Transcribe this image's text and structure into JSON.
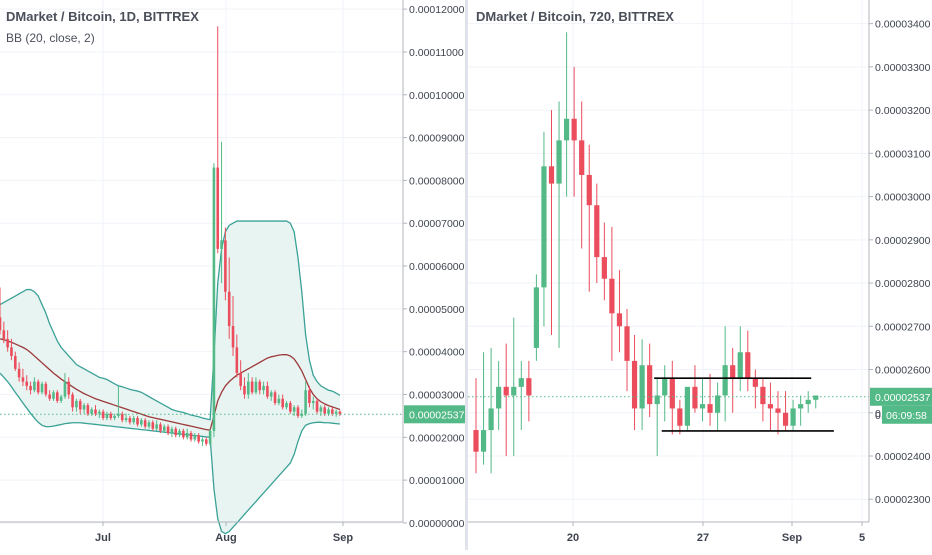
{
  "chart_data": [
    {
      "type": "candlestick",
      "title": "DMarket / Bitcoin, 1D, BITTREX",
      "indicator": "BB (20, close, 2)",
      "ylim": [
        -2.5e-07,
        0.0001205
      ],
      "y_ticks": [
        "0.00000000",
        "0.00001000",
        "0.00002000",
        "0.00003000",
        "0.00004000",
        "0.00005000",
        "0.00006000",
        "0.00007000",
        "0.00008000",
        "0.00009000",
        "0.00010000",
        "0.00011000",
        "0.00012000"
      ],
      "x_ticks": [
        "Jul",
        "Aug",
        "Sep"
      ],
      "current_price": "0.00002537",
      "colors": {
        "up": "#53b987",
        "down": "#eb4d5c",
        "band_fill": "#e8f4f2",
        "band_line": "#3aa197",
        "basis": "#9c3a3a",
        "price_line": "#53b987"
      },
      "candles": [
        [
          4.8e-05,
          5.5e-05,
          4.4e-05,
          4.5e-05
        ],
        [
          4.5e-05,
          4.7e-05,
          4.2e-05,
          4.3e-05
        ],
        [
          4.3e-05,
          4.5e-05,
          4e-05,
          4.1e-05
        ],
        [
          4.1e-05,
          4.3e-05,
          3.8e-05,
          3.9e-05
        ],
        [
          3.9e-05,
          4e-05,
          3.55e-05,
          3.6e-05
        ],
        [
          3.6e-05,
          3.75e-05,
          3.3e-05,
          3.4e-05
        ],
        [
          3.4e-05,
          3.6e-05,
          3.2e-05,
          3.3e-05
        ],
        [
          3.3e-05,
          3.45e-05,
          3.1e-05,
          3.2e-05
        ],
        [
          3.2e-05,
          3.3e-05,
          3e-05,
          3.1e-05
        ],
        [
          3.1e-05,
          3.4e-05,
          3.05e-05,
          3.3e-05
        ],
        [
          3.3e-05,
          3.35e-05,
          3e-05,
          3.05e-05
        ],
        [
          3.05e-05,
          3.3e-05,
          3e-05,
          3.25e-05
        ],
        [
          3.25e-05,
          3.3e-05,
          2.95e-05,
          3e-05
        ],
        [
          3e-05,
          3.1e-05,
          2.85e-05,
          2.9e-05
        ],
        [
          2.9e-05,
          3.1e-05,
          2.85e-05,
          3.05e-05
        ],
        [
          3.05e-05,
          3.1e-05,
          2.8e-05,
          2.85e-05
        ],
        [
          2.85e-05,
          3e-05,
          2.8e-05,
          2.95e-05
        ],
        [
          2.95e-05,
          3.5e-05,
          2.9e-05,
          3.3e-05
        ],
        [
          3.3e-05,
          3.4e-05,
          2.9e-05,
          3e-05
        ],
        [
          3e-05,
          3.05e-05,
          2.6e-05,
          2.7e-05
        ],
        [
          2.7e-05,
          2.9e-05,
          2.6e-05,
          2.85e-05
        ],
        [
          2.85e-05,
          2.9e-05,
          2.55e-05,
          2.65e-05
        ],
        [
          2.65e-05,
          2.8e-05,
          2.55e-05,
          2.75e-05
        ],
        [
          2.75e-05,
          2.8e-05,
          2.5e-05,
          2.55e-05
        ],
        [
          2.55e-05,
          2.7e-05,
          2.5e-05,
          2.65e-05
        ],
        [
          2.65e-05,
          2.75e-05,
          2.5e-05,
          2.55e-05
        ],
        [
          2.55e-05,
          2.65e-05,
          2.45e-05,
          2.6e-05
        ],
        [
          2.6e-05,
          2.65e-05,
          2.4e-05,
          2.45e-05
        ],
        [
          2.45e-05,
          2.6e-05,
          2.4e-05,
          2.55e-05
        ],
        [
          2.55e-05,
          2.6e-05,
          2.4e-05,
          2.45e-05
        ],
        [
          2.45e-05,
          2.55e-05,
          2.4e-05,
          2.5e-05
        ],
        [
          2.5e-05,
          3.2e-05,
          2.45e-05,
          2.55e-05
        ],
        [
          2.55e-05,
          2.6e-05,
          2.35e-05,
          2.4e-05
        ],
        [
          2.4e-05,
          2.55e-05,
          2.35e-05,
          2.45e-05
        ],
        [
          2.45e-05,
          2.5e-05,
          2.3e-05,
          2.35e-05
        ],
        [
          2.35e-05,
          2.5e-05,
          2.3e-05,
          2.45e-05
        ],
        [
          2.45e-05,
          2.5e-05,
          2.25e-05,
          2.3e-05
        ],
        [
          2.3e-05,
          2.45e-05,
          2.25e-05,
          2.4e-05
        ],
        [
          2.4e-05,
          2.45e-05,
          2.2e-05,
          2.25e-05
        ],
        [
          2.25e-05,
          2.4e-05,
          2.2e-05,
          2.35e-05
        ],
        [
          2.35e-05,
          2.4e-05,
          2.15e-05,
          2.2e-05
        ],
        [
          2.2e-05,
          2.4e-05,
          2.15e-05,
          2.3e-05
        ],
        [
          2.3e-05,
          2.35e-05,
          2.1e-05,
          2.15e-05
        ],
        [
          2.15e-05,
          2.3e-05,
          2.1e-05,
          2.25e-05
        ],
        [
          2.25e-05,
          2.3e-05,
          2.05e-05,
          2.1e-05
        ],
        [
          2.1e-05,
          2.25e-05,
          2e-05,
          2.2e-05
        ],
        [
          2.2e-05,
          2.25e-05,
          2e-05,
          2.05e-05
        ],
        [
          2.05e-05,
          2.2e-05,
          2e-05,
          2.15e-05
        ],
        [
          2.15e-05,
          2.2e-05,
          1.95e-05,
          2e-05
        ],
        [
          2e-05,
          2.2e-05,
          1.95e-05,
          2.1e-05
        ],
        [
          2.1e-05,
          2.15e-05,
          1.9e-05,
          1.95e-05
        ],
        [
          1.95e-05,
          2.1e-05,
          1.9e-05,
          2.05e-05
        ],
        [
          2.05e-05,
          2.1e-05,
          1.85e-05,
          1.9e-05
        ],
        [
          1.9e-05,
          2e-05,
          1.8e-05,
          1.95e-05
        ],
        [
          1.95e-05,
          2e-05,
          1.8e-05,
          1.85e-05
        ],
        [
          1.85e-05,
          2.2e-05,
          1.8e-05,
          2.15e-05
        ],
        [
          2.15e-05,
          8.4e-05,
          2e-05,
          8.3e-05
        ],
        [
          8.3e-05,
          0.000116,
          6.3e-05,
          6.4e-05
        ],
        [
          6.4e-05,
          8.9e-05,
          5.6e-05,
          6.6e-05
        ],
        [
          6.6e-05,
          6.9e-05,
          5.2e-05,
          5.4e-05
        ],
        [
          5.4e-05,
          6.2e-05,
          4.3e-05,
          4.6e-05
        ],
        [
          4.6e-05,
          5.3e-05,
          3.9e-05,
          4.1e-05
        ],
        [
          4.1e-05,
          4.4e-05,
          3.4e-05,
          3.5e-05
        ],
        [
          3.5e-05,
          3.8e-05,
          3.1e-05,
          3.2e-05
        ],
        [
          3.2e-05,
          3.4e-05,
          2.9e-05,
          3e-05
        ],
        [
          3e-05,
          3.5e-05,
          2.9e-05,
          3.3e-05
        ],
        [
          3.3e-05,
          3.4e-05,
          3e-05,
          3.05e-05
        ],
        [
          3.05e-05,
          3.4e-05,
          3e-05,
          3.3e-05
        ],
        [
          3.3e-05,
          3.35e-05,
          3e-05,
          3.1e-05
        ],
        [
          3.1e-05,
          3.3e-05,
          3e-05,
          3.2e-05
        ],
        [
          3.2e-05,
          3.3e-05,
          2.9e-05,
          2.95e-05
        ],
        [
          2.95e-05,
          3.1e-05,
          2.85e-05,
          3.05e-05
        ],
        [
          3.05e-05,
          3.1e-05,
          2.75e-05,
          2.8e-05
        ],
        [
          2.8e-05,
          3e-05,
          2.75e-05,
          2.9e-05
        ],
        [
          2.9e-05,
          3e-05,
          2.65e-05,
          2.7e-05
        ],
        [
          2.7e-05,
          2.85e-05,
          2.65e-05,
          2.8e-05
        ],
        [
          2.8e-05,
          2.85e-05,
          2.55e-05,
          2.6e-05
        ],
        [
          2.6e-05,
          2.75e-05,
          2.5e-05,
          2.7e-05
        ],
        [
          2.7e-05,
          2.75e-05,
          2.45e-05,
          2.5e-05
        ],
        [
          2.5e-05,
          2.65e-05,
          2.45e-05,
          2.55e-05
        ],
        [
          2.55e-05,
          3.3e-05,
          2.5e-05,
          3.1e-05
        ],
        [
          3.1e-05,
          3.2e-05,
          2.7e-05,
          2.8e-05
        ],
        [
          2.8e-05,
          2.95e-05,
          2.65e-05,
          2.85e-05
        ],
        [
          2.85e-05,
          2.9e-05,
          2.55e-05,
          2.6e-05
        ],
        [
          2.6e-05,
          2.75e-05,
          2.5e-05,
          2.7e-05
        ],
        [
          2.7e-05,
          2.75e-05,
          2.5e-05,
          2.55e-05
        ],
        [
          2.55e-05,
          2.7e-05,
          2.5e-05,
          2.65e-05
        ],
        [
          2.65e-05,
          2.7e-05,
          2.5e-05,
          2.55e-05
        ],
        [
          2.55e-05,
          2.65e-05,
          2.48e-05,
          2.6e-05
        ],
        [
          2.6e-05,
          2.63e-05,
          2.5e-05,
          2.54e-05
        ]
      ],
      "bb_upper": [
        5.1e-05,
        5.15e-05,
        5.2e-05,
        5.25e-05,
        5.3e-05,
        5.35e-05,
        5.4e-05,
        5.45e-05,
        5.45e-05,
        5.4e-05,
        5.3e-05,
        5.1e-05,
        4.9e-05,
        4.65e-05,
        4.45e-05,
        4.25e-05,
        4.1e-05,
        4e-05,
        3.9e-05,
        3.8e-05,
        3.7e-05,
        3.65e-05,
        3.6e-05,
        3.55e-05,
        3.5e-05,
        3.45e-05,
        3.4e-05,
        3.38e-05,
        3.35e-05,
        3.3e-05,
        3.25e-05,
        3.2e-05,
        3.18e-05,
        3.15e-05,
        3.12e-05,
        3.1e-05,
        3.08e-05,
        3.05e-05,
        3e-05,
        2.95e-05,
        2.9e-05,
        2.85e-05,
        2.8e-05,
        2.75e-05,
        2.7e-05,
        2.65e-05,
        2.62e-05,
        2.6e-05,
        2.58e-05,
        2.55e-05,
        2.52e-05,
        2.5e-05,
        2.48e-05,
        2.45e-05,
        2.43e-05,
        2.41e-05,
        3.9e-05,
        5.6e-05,
        6.4e-05,
        6.8e-05,
        6.95e-05,
        7e-05,
        7.05e-05,
        7.05e-05,
        7.05e-05,
        7.05e-05,
        7.05e-05,
        7.05e-05,
        7.05e-05,
        7.05e-05,
        7.05e-05,
        7.05e-05,
        7.05e-05,
        7.05e-05,
        7.05e-05,
        7.05e-05,
        7e-05,
        6.8e-05,
        6.2e-05,
        5.4e-05,
        4.4e-05,
        3.8e-05,
        3.45e-05,
        3.3e-05,
        3.2e-05,
        3.15e-05,
        3.1e-05,
        3.08e-05,
        3.03e-05,
        2.98e-05
      ],
      "bb_basis": [
        4.3e-05,
        4.28e-05,
        4.25e-05,
        4.22e-05,
        4.18e-05,
        4.14e-05,
        4.1e-05,
        4.05e-05,
        3.98e-05,
        3.9e-05,
        3.82e-05,
        3.74e-05,
        3.66e-05,
        3.58e-05,
        3.5e-05,
        3.43e-05,
        3.36e-05,
        3.3e-05,
        3.24e-05,
        3.18e-05,
        3.12e-05,
        3.07e-05,
        3.02e-05,
        2.98e-05,
        2.94e-05,
        2.9e-05,
        2.87e-05,
        2.84e-05,
        2.81e-05,
        2.78e-05,
        2.75e-05,
        2.72e-05,
        2.69e-05,
        2.66e-05,
        2.63e-05,
        2.6e-05,
        2.57e-05,
        2.54e-05,
        2.51e-05,
        2.48e-05,
        2.46e-05,
        2.44e-05,
        2.42e-05,
        2.4e-05,
        2.38e-05,
        2.36e-05,
        2.34e-05,
        2.32e-05,
        2.3e-05,
        2.28e-05,
        2.26e-05,
        2.24e-05,
        2.22e-05,
        2.2e-05,
        2.18e-05,
        2.17e-05,
        2.5e-05,
        2.85e-05,
        3.05e-05,
        3.2e-05,
        3.3e-05,
        3.38e-05,
        3.45e-05,
        3.5e-05,
        3.55e-05,
        3.6e-05,
        3.65e-05,
        3.7e-05,
        3.75e-05,
        3.8e-05,
        3.85e-05,
        3.88e-05,
        3.9e-05,
        3.92e-05,
        3.93e-05,
        3.93e-05,
        3.9e-05,
        3.83e-05,
        3.7e-05,
        3.55e-05,
        3.35e-05,
        3.15e-05,
        3e-05,
        2.9e-05,
        2.83e-05,
        2.78e-05,
        2.74e-05,
        2.71e-05,
        2.68e-05,
        2.65e-05
      ],
      "bb_lower": [
        3.5e-05,
        3.4e-05,
        3.3e-05,
        3.18e-05,
        3.05e-05,
        2.93e-05,
        2.8e-05,
        2.68e-05,
        2.56e-05,
        2.45e-05,
        2.35e-05,
        2.28e-05,
        2.25e-05,
        2.25e-05,
        2.26e-05,
        2.28e-05,
        2.3e-05,
        2.32e-05,
        2.33e-05,
        2.34e-05,
        2.34e-05,
        2.34e-05,
        2.33e-05,
        2.32e-05,
        2.31e-05,
        2.3e-05,
        2.29e-05,
        2.28e-05,
        2.27e-05,
        2.26e-05,
        2.25e-05,
        2.24e-05,
        2.23e-05,
        2.22e-05,
        2.21e-05,
        2.2e-05,
        2.19e-05,
        2.18e-05,
        2.17e-05,
        2.16e-05,
        2.15e-05,
        2.14e-05,
        2.13e-05,
        2.12e-05,
        2.11e-05,
        2.1e-05,
        2.09e-05,
        2.08e-05,
        2.07e-05,
        2.06e-05,
        2.05e-05,
        2.04e-05,
        2.03e-05,
        2.02e-05,
        2.01e-05,
        2e-05,
        8e-06,
        1e-06,
        -2e-06,
        -2.5e-06,
        -2e-06,
        -1e-06,
        0.0,
        1e-06,
        2e-06,
        3e-06,
        4e-06,
        5e-06,
        6e-06,
        7e-06,
        8e-06,
        9e-06,
        1e-05,
        1.1e-05,
        1.2e-05,
        1.3e-05,
        1.4e-05,
        1.6e-05,
        1.9e-05,
        2.15e-05,
        2.28e-05,
        2.32e-05,
        2.34e-05,
        2.35e-05,
        2.35e-05,
        2.34e-05,
        2.34e-05,
        2.33e-05,
        2.32e-05,
        2.31e-05
      ]
    },
    {
      "type": "candlestick",
      "title": "DMarket / Bitcoin, 720, BITTREX",
      "ylim": [
        2.252e-05,
        3.413e-05
      ],
      "y_ticks": [
        "0.00002300",
        "0.00002400",
        "0.00002500",
        "0.00002600",
        "0.00002700",
        "0.00002800",
        "0.00002900",
        "0.00003000",
        "0.00003100",
        "0.00003200",
        "0.00003300",
        "0.00003400"
      ],
      "partial_y_tick": "0.",
      "x_ticks": [
        "20",
        "27",
        "Sep",
        "5"
      ],
      "current_price": "0.00002537",
      "countdown": "06:09:58",
      "colors": {
        "up": "#53b987",
        "down": "#eb4d5c",
        "level_line": "#000000",
        "price_line": "#53b987"
      },
      "candles": [
        [
          2.46e-05,
          2.58e-05,
          2.36e-05,
          2.41e-05
        ],
        [
          2.41e-05,
          2.64e-05,
          2.38e-05,
          2.46e-05
        ],
        [
          2.46e-05,
          2.65e-05,
          2.36e-05,
          2.51e-05
        ],
        [
          2.51e-05,
          2.62e-05,
          2.46e-05,
          2.56e-05
        ],
        [
          2.56e-05,
          2.66e-05,
          2.4e-05,
          2.54e-05
        ],
        [
          2.54e-05,
          2.72e-05,
          2.4e-05,
          2.56e-05
        ],
        [
          2.56e-05,
          2.62e-05,
          2.46e-05,
          2.58e-05
        ],
        [
          2.58e-05,
          2.62e-05,
          2.48e-05,
          2.54e-05
        ],
        [
          2.65e-05,
          2.82e-05,
          2.62e-05,
          2.79e-05
        ],
        [
          2.79e-05,
          3.15e-05,
          2.7e-05,
          3.07e-05
        ],
        [
          3.07e-05,
          3.2e-05,
          2.68e-05,
          3.03e-05
        ],
        [
          3.03e-05,
          3.22e-05,
          2.65e-05,
          3.13e-05
        ],
        [
          3.13e-05,
          3.38e-05,
          3e-05,
          3.18e-05
        ],
        [
          3.18e-05,
          3.3e-05,
          3e-05,
          3.13e-05
        ],
        [
          3.13e-05,
          3.22e-05,
          2.88e-05,
          3.05e-05
        ],
        [
          3.05e-05,
          3.12e-05,
          2.78e-05,
          2.98e-05
        ],
        [
          2.98e-05,
          3.03e-05,
          2.8e-05,
          2.86e-05
        ],
        [
          2.86e-05,
          2.94e-05,
          2.76e-05,
          2.81e-05
        ],
        [
          2.81e-05,
          2.93e-05,
          2.62e-05,
          2.73e-05
        ],
        [
          2.73e-05,
          2.83e-05,
          2.64e-05,
          2.7e-05
        ],
        [
          2.7e-05,
          2.74e-05,
          2.55e-05,
          2.62e-05
        ],
        [
          2.62e-05,
          2.68e-05,
          2.46e-05,
          2.51e-05
        ],
        [
          2.51e-05,
          2.67e-05,
          2.46e-05,
          2.61e-05
        ],
        [
          2.61e-05,
          2.66e-05,
          2.49e-05,
          2.52e-05
        ],
        [
          2.52e-05,
          2.58e-05,
          2.4e-05,
          2.54e-05
        ],
        [
          2.54e-05,
          2.61e-05,
          2.48e-05,
          2.58e-05
        ],
        [
          2.58e-05,
          2.62e-05,
          2.45e-05,
          2.51e-05
        ],
        [
          2.51e-05,
          2.53e-05,
          2.45e-05,
          2.47e-05
        ],
        [
          2.47e-05,
          2.55e-05,
          2.46e-05,
          2.56e-05
        ],
        [
          2.56e-05,
          2.61e-05,
          2.5e-05,
          2.51e-05
        ],
        [
          2.51e-05,
          2.58e-05,
          2.48e-05,
          2.52e-05
        ],
        [
          2.52e-05,
          2.59e-05,
          2.47e-05,
          2.5e-05
        ],
        [
          2.5e-05,
          2.57e-05,
          2.46e-05,
          2.54e-05
        ],
        [
          2.54e-05,
          2.7e-05,
          2.48e-05,
          2.61e-05
        ],
        [
          2.61e-05,
          2.65e-05,
          2.5e-05,
          2.58e-05
        ],
        [
          2.58e-05,
          2.7e-05,
          2.55e-05,
          2.64e-05
        ],
        [
          2.64e-05,
          2.69e-05,
          2.55e-05,
          2.58e-05
        ],
        [
          2.58e-05,
          2.6e-05,
          2.51e-05,
          2.56e-05
        ],
        [
          2.56e-05,
          2.58e-05,
          2.48e-05,
          2.52e-05
        ],
        [
          2.52e-05,
          2.57e-05,
          2.46e-05,
          2.51e-05
        ],
        [
          2.51e-05,
          2.55e-05,
          2.45e-05,
          2.5e-05
        ],
        [
          2.5e-05,
          2.55e-05,
          2.46e-05,
          2.47e-05
        ],
        [
          2.47e-05,
          2.53e-05,
          2.46e-05,
          2.51e-05
        ],
        [
          2.51e-05,
          2.54e-05,
          2.47e-05,
          2.52e-05
        ],
        [
          2.52e-05,
          2.55e-05,
          2.5e-05,
          2.53e-05
        ],
        [
          2.53e-05,
          2.54e-05,
          2.51e-05,
          2.54e-05
        ]
      ],
      "levels": [
        {
          "value": 2.58e-05,
          "from": 24,
          "to": 44
        },
        {
          "value": 2.458e-05,
          "from": 25,
          "to": 47
        }
      ]
    }
  ]
}
